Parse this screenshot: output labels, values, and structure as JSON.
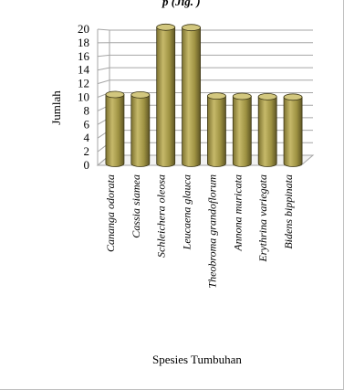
{
  "chart_data": {
    "type": "bar",
    "style": "3d-cylinder",
    "partial_title_visible": "p (Jiğ.  )",
    "categories": [
      "Cananga odorata",
      "Cassia siamea",
      "Schleichera oleosa",
      "Leucaena glauca",
      "Theobroma grandoflorum",
      "Annona muricata",
      "Erythrina variegata",
      "Bidens bippinata"
    ],
    "values": [
      10,
      10,
      20,
      20,
      10,
      10,
      10,
      10
    ],
    "xlabel": "Spesies Tumbuhan",
    "ylabel": "Jumlah",
    "ylim": [
      0,
      20
    ],
    "yticks": [
      0,
      2,
      4,
      6,
      8,
      10,
      12,
      14,
      16,
      18,
      20
    ],
    "grid": true,
    "legend": "none",
    "colors": {
      "bar_light": "#c6b96a",
      "bar_mid": "#9e9242",
      "bar_dark": "#5e5524",
      "bar_top": "#d2c77e",
      "bar_edge": "#3d3716",
      "grid": "#a6a6a6",
      "floor": "#f2f2f2"
    }
  }
}
